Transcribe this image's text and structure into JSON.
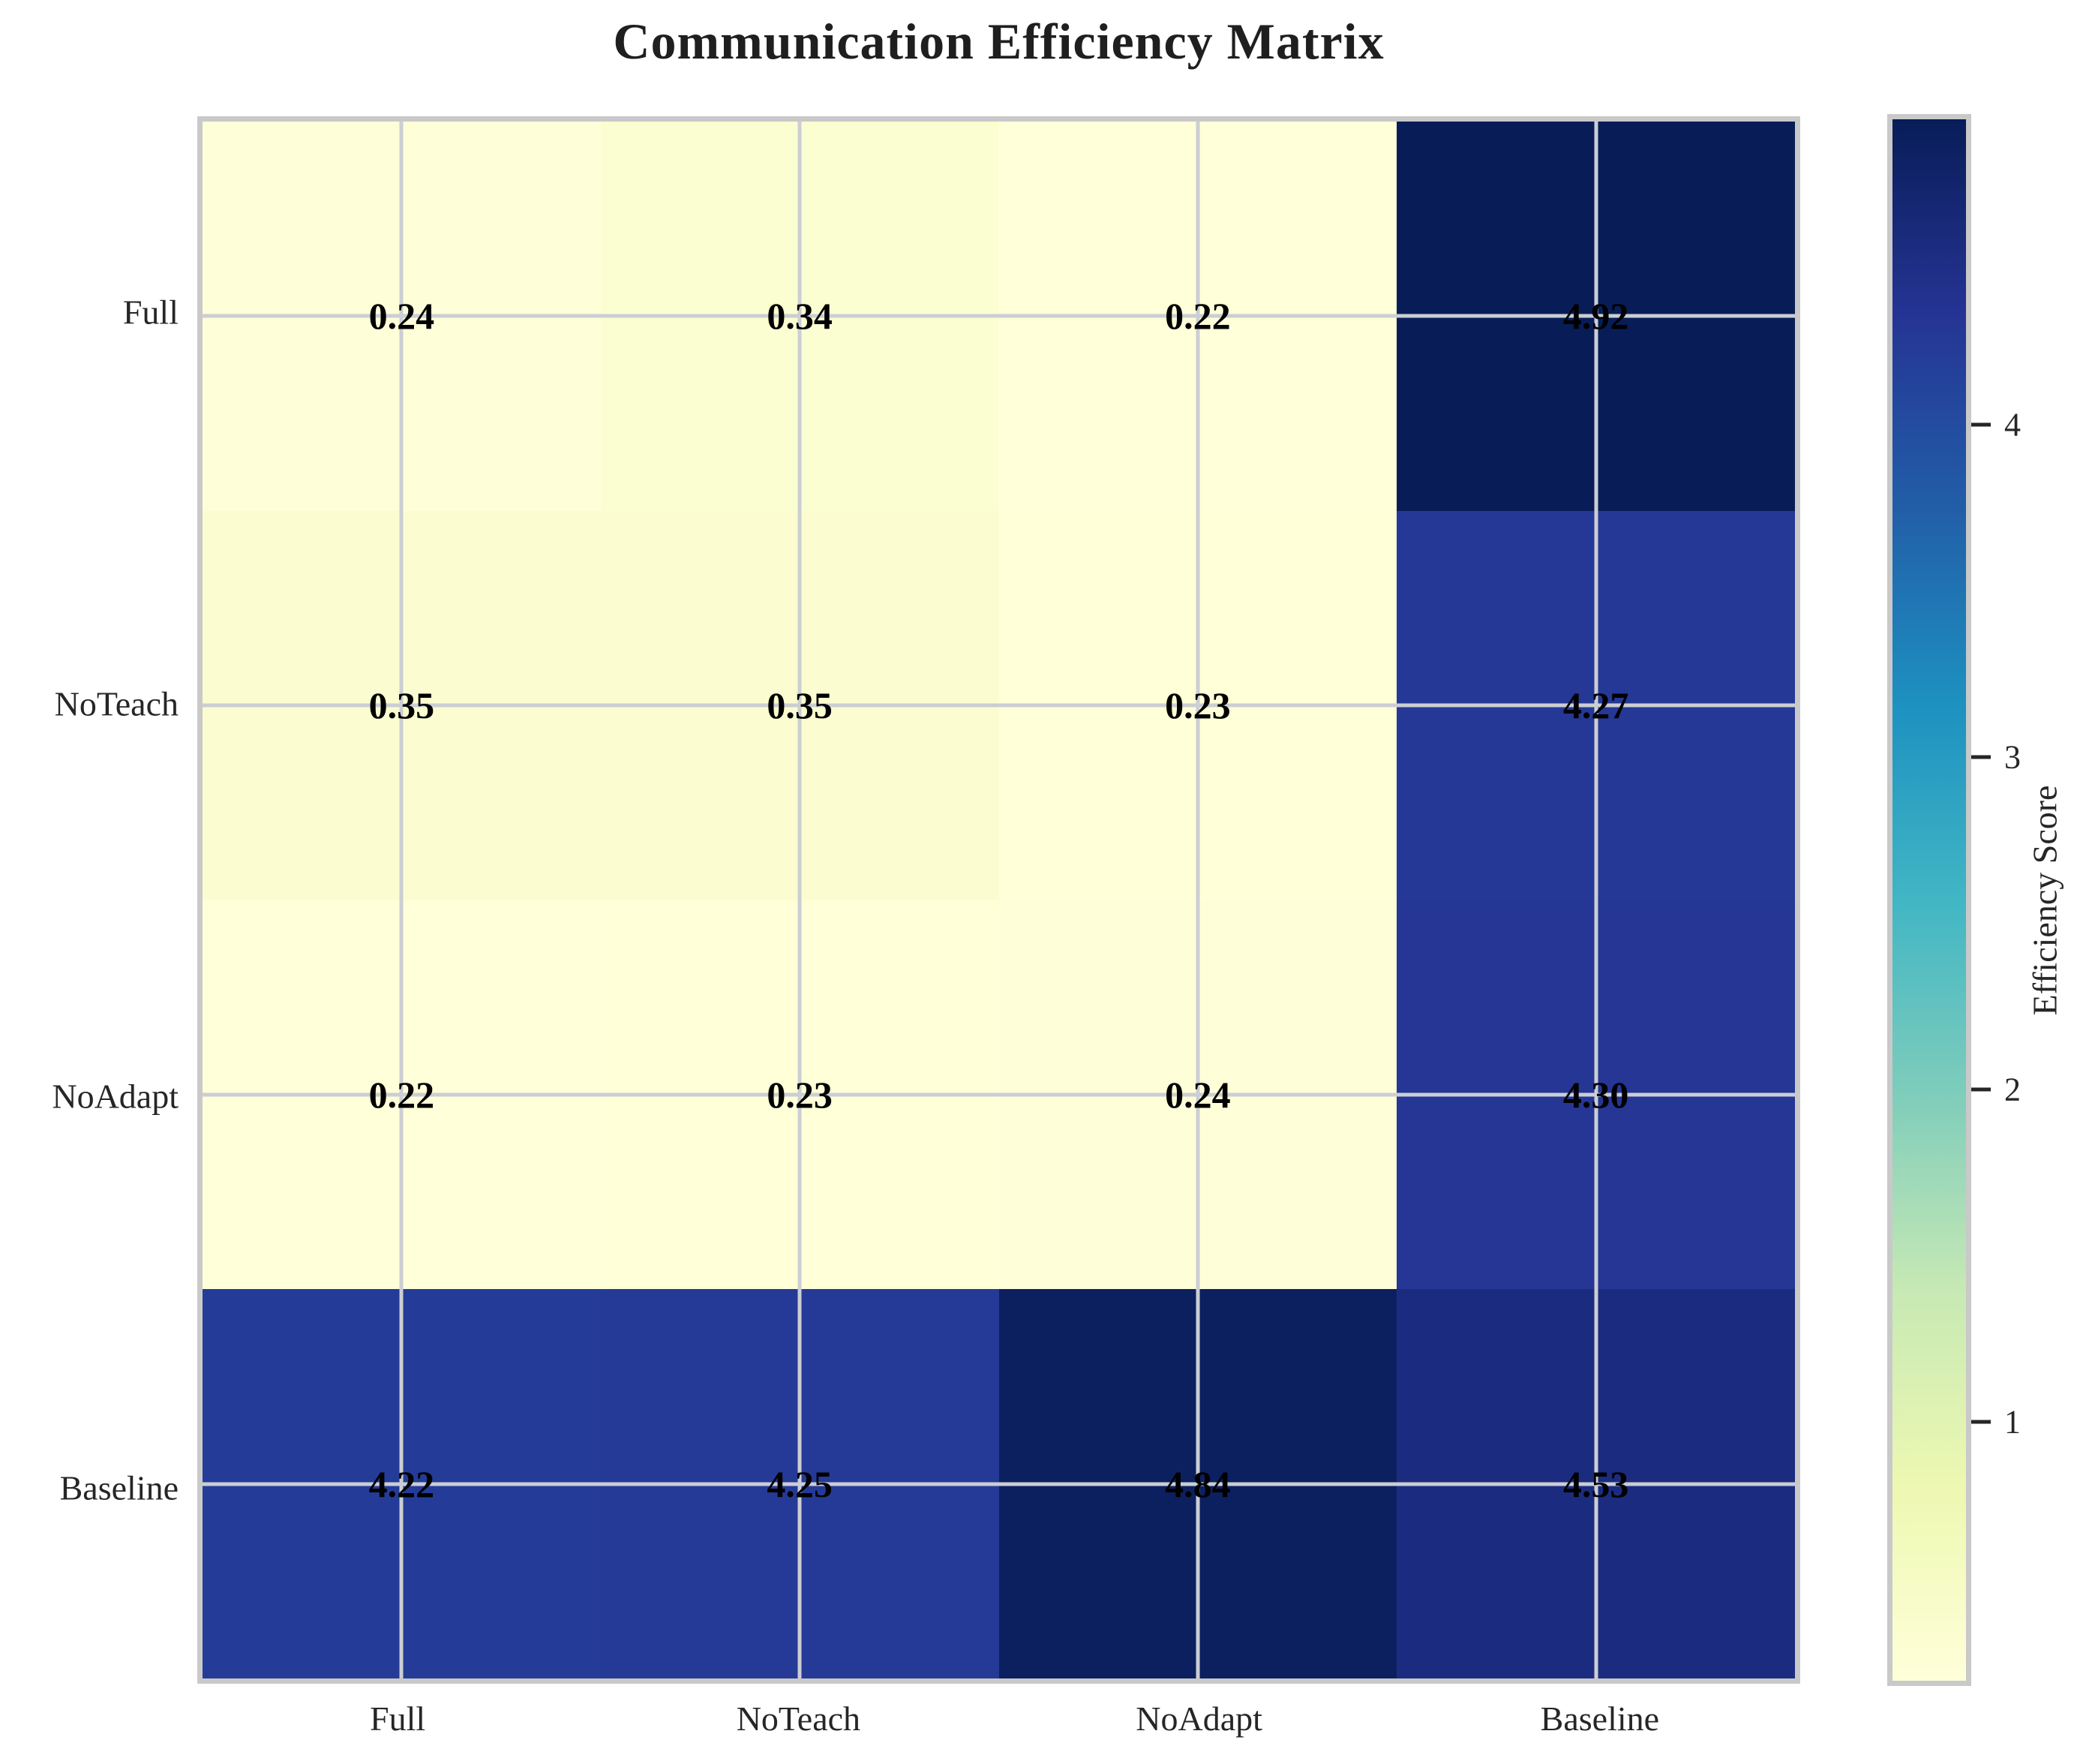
{
  "title": "Communication Efficiency Matrix",
  "chart_data": {
    "type": "heatmap",
    "title": "Communication Efficiency Matrix",
    "x_categories": [
      "Full",
      "NoTeach",
      "NoAdapt",
      "Baseline"
    ],
    "y_categories": [
      "Full",
      "NoTeach",
      "NoAdapt",
      "Baseline"
    ],
    "values": [
      [
        0.24,
        0.34,
        0.22,
        4.92
      ],
      [
        0.35,
        0.35,
        0.23,
        4.27
      ],
      [
        0.22,
        0.23,
        0.24,
        4.3
      ],
      [
        4.22,
        4.25,
        4.84,
        4.53
      ]
    ],
    "value_labels": [
      [
        "0.24",
        "0.34",
        "0.22",
        "4.92"
      ],
      [
        "0.35",
        "0.35",
        "0.23",
        "4.27"
      ],
      [
        "0.22",
        "0.23",
        "0.24",
        "4.30"
      ],
      [
        "4.22",
        "4.25",
        "4.84",
        "4.53"
      ]
    ],
    "colormap": "YlGnBu",
    "colormap_stops": [
      "#ffffd9",
      "#edf8b1",
      "#c7e9b4",
      "#7fcdbb",
      "#41b6c4",
      "#1d91c0",
      "#225ea8",
      "#253494",
      "#081d58"
    ],
    "colorbar": {
      "label": "Efficiency Score",
      "ticks": [
        4,
        3,
        2,
        1
      ]
    },
    "legend_position": "right",
    "grid": true,
    "colors": {
      "frame": "#c9c9c9",
      "grid_line": "#cbced3",
      "annotation_text": "#000000",
      "tick_text": "#262626",
      "title_text": "#1f1f1f",
      "background": "#ffffff"
    }
  }
}
